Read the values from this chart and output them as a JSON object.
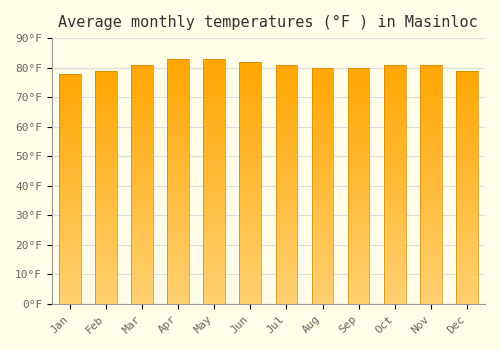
{
  "title": "Average monthly temperatures (°F ) in Masinloc",
  "months": [
    "Jan",
    "Feb",
    "Mar",
    "Apr",
    "May",
    "Jun",
    "Jul",
    "Aug",
    "Sep",
    "Oct",
    "Nov",
    "Dec"
  ],
  "values": [
    78,
    79,
    81,
    83,
    83,
    82,
    81,
    80,
    80,
    81,
    81,
    79
  ],
  "bar_color_top": "#FFA500",
  "bar_color_bottom": "#FFD580",
  "background_color": "#FFFDE7",
  "grid_color": "#DDDDDD",
  "ylim": [
    0,
    90
  ],
  "yticks": [
    0,
    10,
    20,
    30,
    40,
    50,
    60,
    70,
    80,
    90
  ],
  "ytick_labels": [
    "0°F",
    "10°F",
    "20°F",
    "30°F",
    "40°F",
    "50°F",
    "60°F",
    "70°F",
    "80°F",
    "90°F"
  ],
  "title_fontsize": 11,
  "tick_fontsize": 8,
  "bar_edge_color": "#CC8800",
  "bar_width": 0.6
}
